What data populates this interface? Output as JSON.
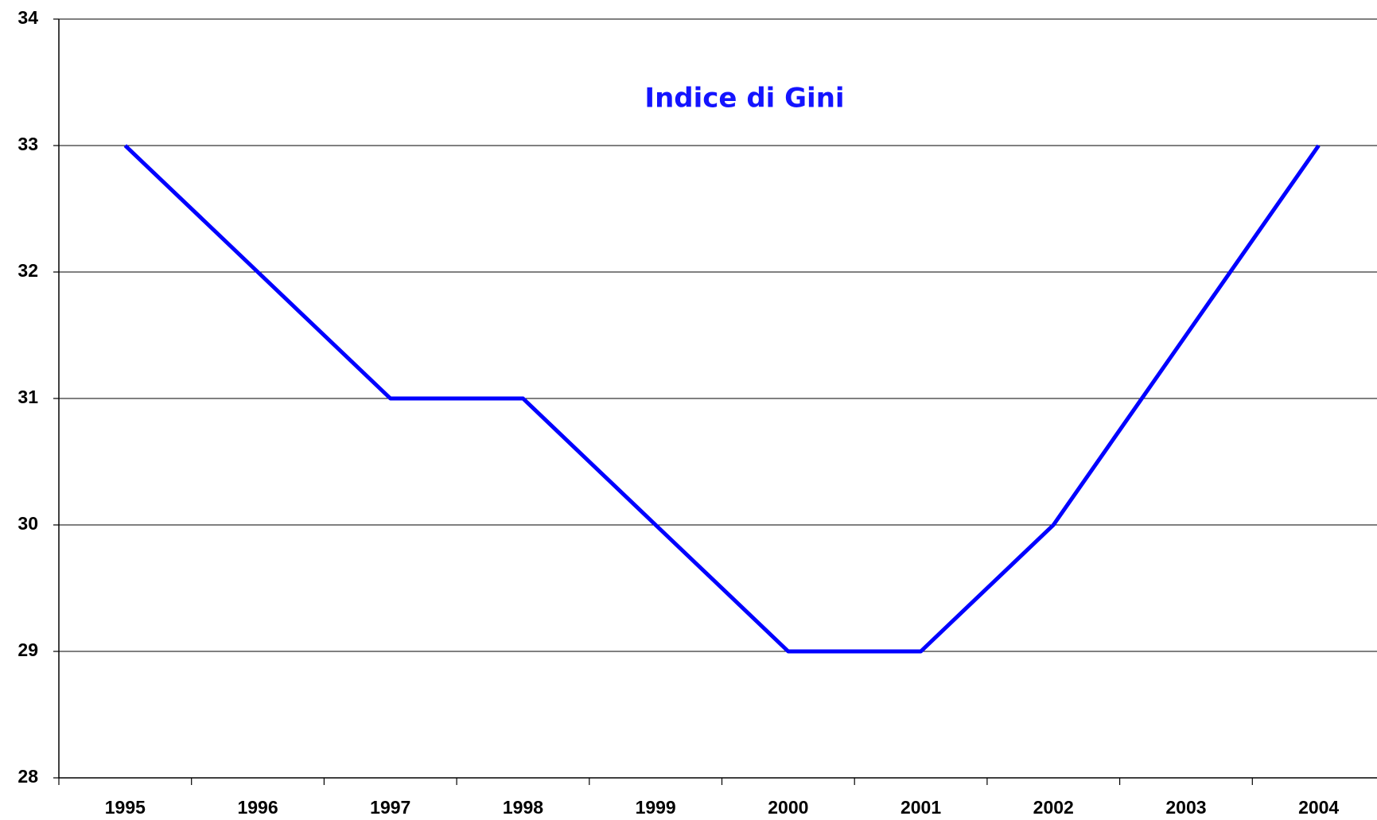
{
  "chart_data": {
    "type": "line",
    "title": "Indice di Gini",
    "categories": [
      "1995",
      "1996",
      "1997",
      "1998",
      "1999",
      "2000",
      "2001",
      "2002",
      "2003",
      "2004"
    ],
    "series": [
      {
        "name": "Indice di Gini",
        "color": "#0000ff",
        "values": [
          33,
          32,
          31,
          31,
          30,
          29,
          29,
          30,
          31.5,
          33
        ]
      }
    ],
    "ylim": [
      28,
      34
    ],
    "yticks": [
      28,
      29,
      30,
      31,
      32,
      33,
      34
    ],
    "grid": true
  }
}
